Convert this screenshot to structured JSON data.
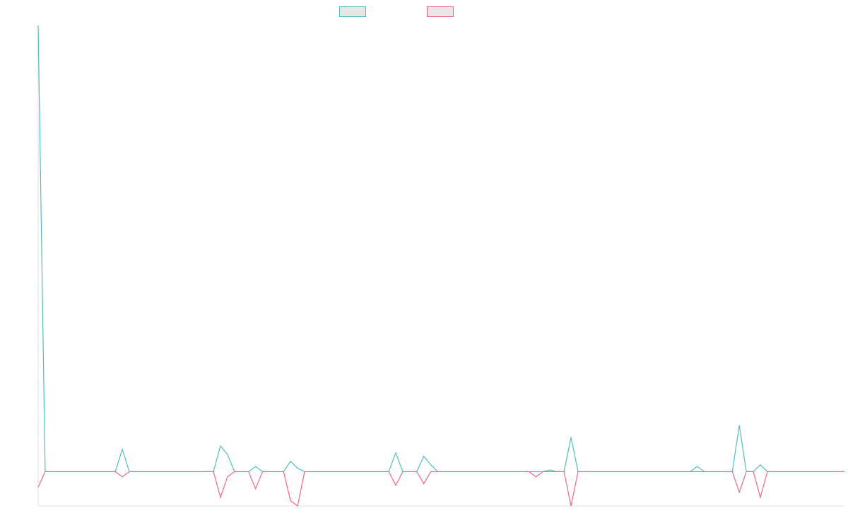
{
  "chart_data": {
    "type": "line",
    "title": "",
    "xlabel": "",
    "ylabel": "",
    "ylim": [
      -20,
      260
    ],
    "x": [
      0,
      1,
      2,
      3,
      4,
      5,
      6,
      7,
      8,
      9,
      10,
      11,
      12,
      13,
      14,
      15,
      16,
      17,
      18,
      19,
      20,
      21,
      22,
      23,
      24,
      25,
      26,
      27,
      28,
      29,
      30,
      31,
      32,
      33,
      34,
      35,
      36,
      37,
      38,
      39,
      40,
      41,
      42,
      43,
      44,
      45,
      46,
      47,
      48,
      49,
      50,
      51,
      52,
      53,
      54,
      55,
      56,
      57,
      58,
      59,
      60,
      61,
      62,
      63,
      64,
      65,
      66,
      67,
      68,
      69,
      70,
      71,
      72,
      73,
      74,
      75,
      76,
      77,
      78,
      79,
      80,
      81,
      82,
      83,
      84,
      85,
      86,
      87,
      88,
      89,
      90,
      91,
      92,
      93,
      94,
      95,
      96,
      97,
      98,
      99,
      100,
      101,
      102,
      103,
      104,
      105,
      106,
      107,
      108,
      109,
      110,
      111,
      112,
      113,
      114,
      115
    ],
    "series": [
      {
        "name": "",
        "color": "#4bc0c0",
        "values": [
          260,
          0,
          0,
          0,
          0,
          0,
          0,
          0,
          0,
          0,
          0,
          0,
          13,
          0,
          0,
          0,
          0,
          0,
          0,
          0,
          0,
          0,
          0,
          0,
          0,
          0,
          15,
          10,
          0,
          0,
          0,
          3,
          0,
          0,
          0,
          0,
          6,
          2,
          0,
          0,
          0,
          0,
          0,
          0,
          0,
          0,
          0,
          0,
          0,
          0,
          0,
          11,
          0,
          0,
          0,
          9,
          4,
          0,
          0,
          0,
          0,
          0,
          0,
          0,
          0,
          0,
          0,
          0,
          0,
          0,
          0,
          0,
          0,
          1,
          0,
          0,
          20,
          0,
          0,
          0,
          0,
          0,
          0,
          0,
          0,
          0,
          0,
          0,
          0,
          0,
          0,
          0,
          0,
          0,
          3,
          0,
          0,
          0,
          0,
          0,
          27,
          0,
          0,
          4,
          0,
          0,
          0,
          0,
          0,
          0,
          0,
          0,
          0,
          0,
          0,
          0
        ]
      },
      {
        "name": "",
        "color": "#ff6384",
        "values": [
          -9,
          0,
          0,
          0,
          0,
          0,
          0,
          0,
          0,
          0,
          0,
          0,
          -3,
          0,
          0,
          0,
          0,
          0,
          0,
          0,
          0,
          0,
          0,
          0,
          0,
          0,
          -15,
          -3,
          0,
          0,
          0,
          -10,
          0,
          0,
          0,
          0,
          -17,
          -20,
          0,
          0,
          0,
          0,
          0,
          0,
          0,
          0,
          0,
          0,
          0,
          0,
          0,
          -8,
          0,
          0,
          0,
          -7,
          0,
          0,
          0,
          0,
          0,
          0,
          0,
          0,
          0,
          0,
          0,
          0,
          0,
          0,
          0,
          -3,
          0,
          0,
          0,
          0,
          -20,
          0,
          0,
          0,
          0,
          0,
          0,
          0,
          0,
          0,
          0,
          0,
          0,
          0,
          0,
          0,
          0,
          0,
          0,
          0,
          0,
          0,
          0,
          0,
          -12,
          0,
          0,
          -15,
          0,
          0,
          0,
          0,
          0,
          0,
          0,
          0,
          0,
          0,
          0,
          0
        ]
      }
    ],
    "grid": false,
    "legend": "top"
  }
}
